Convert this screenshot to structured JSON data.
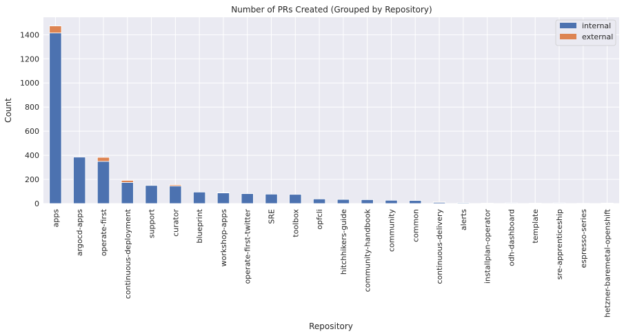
{
  "chart_data": {
    "type": "bar",
    "stacked": true,
    "title": "Number of PRs Created (Grouped by Repository)",
    "xlabel": "Repository",
    "ylabel": "Count",
    "ylim": [
      0,
      1545
    ],
    "yticks": [
      0,
      200,
      400,
      600,
      800,
      1000,
      1200,
      1400
    ],
    "grid": true,
    "legend_position": "top-right",
    "categories": [
      "apps",
      "argocd-apps",
      "operate-first",
      "continuous-deployment",
      "support",
      "curator",
      "blueprint",
      "workshop-apps",
      "operate-first-twitter",
      "SRE",
      "toolbox",
      "opfcli",
      "hitchhikers-guide",
      "community-handbook",
      "community",
      "common",
      "continuous-delivery",
      "alerts",
      "installplan-operator",
      "odh-dashboard",
      "template",
      "sre-apprenticeship",
      "espresso-series",
      "hetzner-baremetal-openshift"
    ],
    "series": [
      {
        "name": "internal",
        "color": "#4c72b0",
        "values": [
          1415,
          385,
          350,
          175,
          150,
          145,
          95,
          88,
          82,
          78,
          76,
          38,
          34,
          32,
          27,
          25,
          10,
          6,
          3,
          5,
          3,
          5,
          2,
          4
        ]
      },
      {
        "name": "external",
        "color": "#dd8452",
        "values": [
          58,
          0,
          33,
          17,
          0,
          10,
          0,
          3,
          0,
          0,
          0,
          0,
          0,
          0,
          0,
          0,
          5,
          0,
          0,
          0,
          0,
          0,
          0,
          0
        ]
      }
    ]
  }
}
